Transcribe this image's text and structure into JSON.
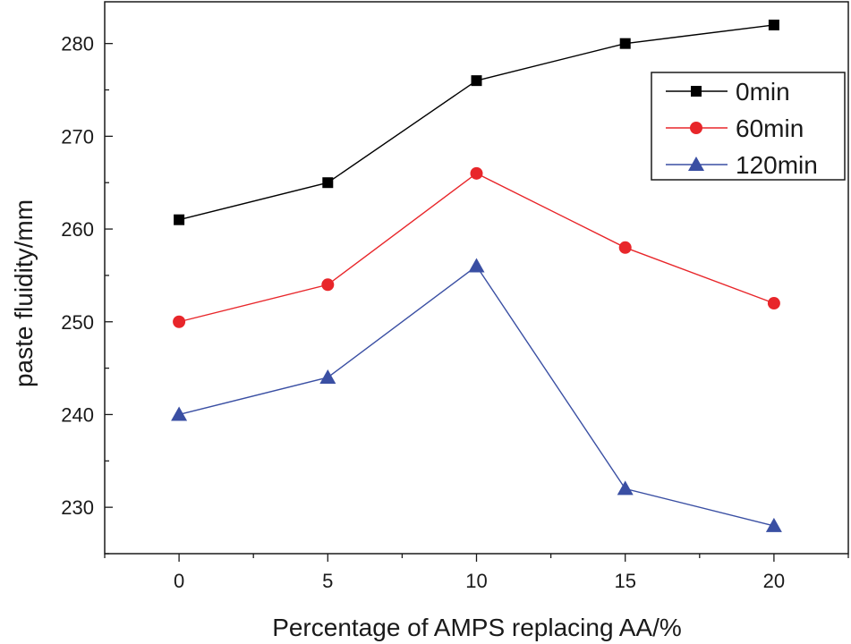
{
  "chart_data": {
    "type": "line",
    "title": "",
    "xlabel": "Percentage of AMPS replacing AA/%",
    "ylabel": "paste fluidity/mm",
    "x": [
      0,
      5,
      10,
      15,
      20
    ],
    "xlim": [
      -2.5,
      22.5
    ],
    "ylim": [
      225,
      284.5
    ],
    "x_ticks": [
      "0",
      "5",
      "10",
      "15",
      "20"
    ],
    "y_ticks": [
      "230",
      "240",
      "250",
      "260",
      "270",
      "280"
    ],
    "grid": false,
    "legend_position": "top-right",
    "series": [
      {
        "name": "0min",
        "color": "#000000",
        "marker": "square",
        "values": [
          261,
          265,
          276,
          280,
          282
        ]
      },
      {
        "name": "60min",
        "color": "#e8262a",
        "marker": "circle",
        "values": [
          250,
          254,
          266,
          258,
          252
        ]
      },
      {
        "name": "120min",
        "color": "#3a4fa3",
        "marker": "triangle",
        "values": [
          240,
          244,
          256,
          232,
          228
        ]
      }
    ]
  }
}
